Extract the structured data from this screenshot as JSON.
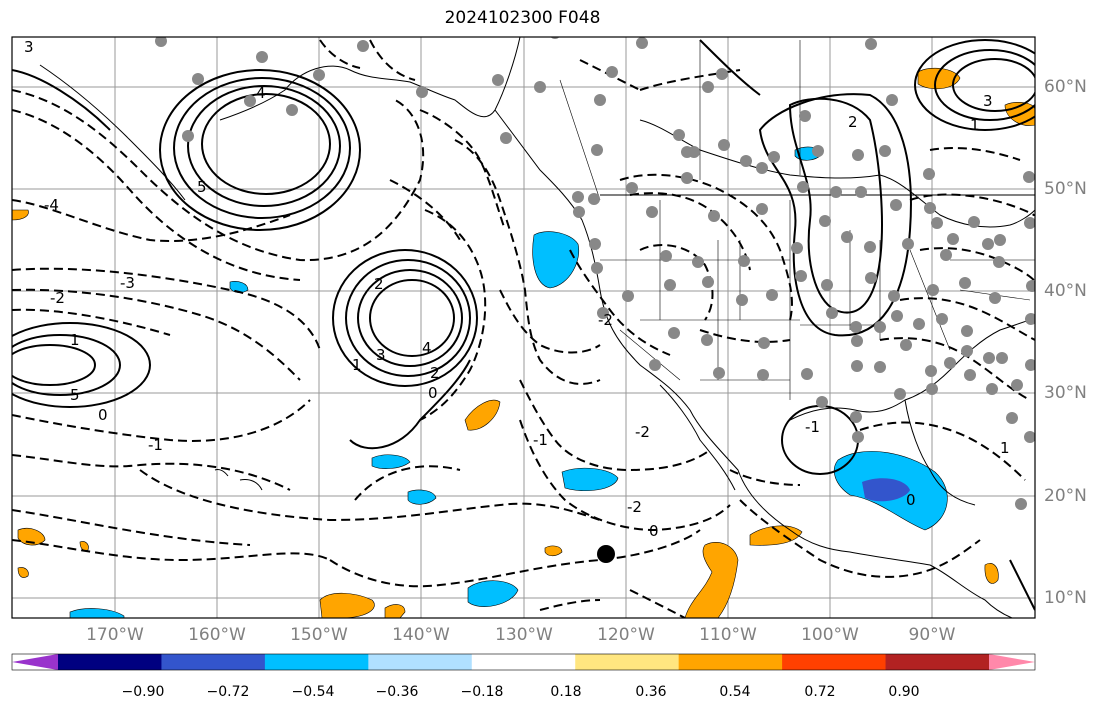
{
  "title": "2024102300 F048",
  "longitude_labels": [
    "170°W",
    "160°W",
    "150°W",
    "140°W",
    "130°W",
    "120°W",
    "110°W",
    "100°W",
    "90°W"
  ],
  "latitude_labels": [
    "60°N",
    "50°N",
    "40°N",
    "30°N",
    "20°N",
    "10°N"
  ],
  "colorbar": {
    "ticks": [
      "−0.90",
      "−0.72",
      "−0.54",
      "−0.36",
      "−0.18",
      "0.18",
      "0.36",
      "0.54",
      "0.72",
      "0.90"
    ],
    "colors": [
      "#9933cc",
      "#000080",
      "#3355cc",
      "#00bfff",
      "#b0e0ff",
      "#ffffff",
      "#ffe680",
      "#ffa500",
      "#ff4000",
      "#b22222",
      "#ff88aa"
    ]
  },
  "contour_labels": [
    "3",
    "4",
    "5",
    "-4",
    "-3",
    "-2",
    "-1",
    "0",
    "1",
    "2",
    "3",
    "4",
    "5",
    "2",
    "1",
    "0",
    "-2",
    "-1",
    "0",
    "-2",
    "-1",
    "2",
    "1",
    "3",
    "1",
    "0",
    "-2"
  ],
  "station_marker": "black-dot"
}
